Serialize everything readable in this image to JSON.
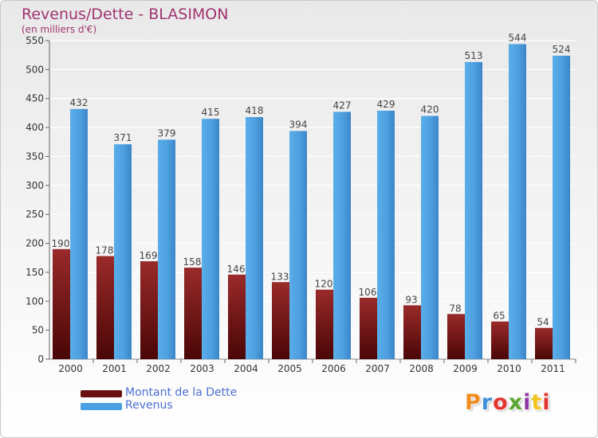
{
  "title": "Revenus/Dette - BLASIMON",
  "subtitle": "(en milliers d'€)",
  "logo_text": "Proxiti",
  "colors": {
    "dette": "#7a1616",
    "revenus": "#4a9fe3",
    "title": "#a0346e",
    "legend_text": "#4a6fd8",
    "logo": [
      "#f08c1c",
      "#3f8fd8",
      "#e3352e",
      "#5aa72f",
      "#8e3aa0",
      "#f2c318",
      "#e3352e"
    ]
  },
  "chart_data": {
    "type": "bar",
    "categories": [
      "2000",
      "2001",
      "2002",
      "2003",
      "2004",
      "2005",
      "2006",
      "2007",
      "2008",
      "2009",
      "2010",
      "2011"
    ],
    "series": [
      {
        "name": "Montant de la Dette",
        "values": [
          190,
          178,
          169,
          158,
          146,
          133,
          120,
          106,
          93,
          78,
          65,
          54
        ]
      },
      {
        "name": "Revenus",
        "values": [
          432,
          371,
          379,
          415,
          418,
          394,
          427,
          429,
          420,
          513,
          544,
          524
        ]
      }
    ],
    "yticks": [
      0,
      50,
      100,
      150,
      200,
      250,
      300,
      350,
      400,
      450,
      500,
      550
    ],
    "ylim": [
      0,
      550
    ],
    "grid": true,
    "legend_position": "bottom-left"
  }
}
